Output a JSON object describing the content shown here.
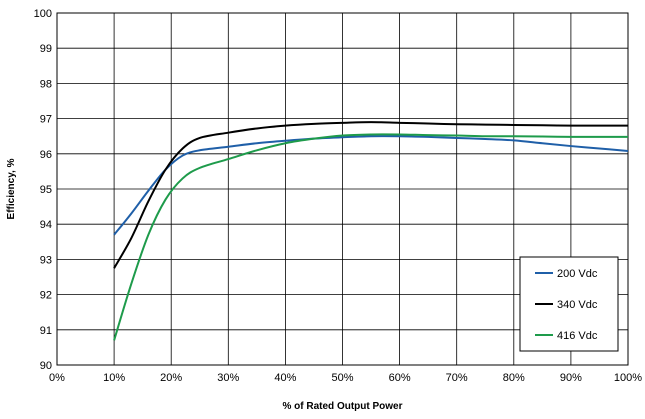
{
  "chart_data": {
    "type": "line",
    "xlabel": "% of Rated Output Power",
    "ylabel": "Efficiency, %",
    "xlim": [
      0,
      100
    ],
    "ylim": [
      90,
      100
    ],
    "x_ticks": [
      0,
      10,
      20,
      30,
      40,
      50,
      60,
      70,
      80,
      90,
      100
    ],
    "x_tick_labels": [
      "0%",
      "10%",
      "20%",
      "30%",
      "40%",
      "50%",
      "60%",
      "70%",
      "80%",
      "90%",
      "100%"
    ],
    "y_ticks": [
      90,
      91,
      92,
      93,
      94,
      95,
      96,
      97,
      98,
      99,
      100
    ],
    "y_tick_labels": [
      "90",
      "91",
      "92",
      "93",
      "94",
      "95",
      "96",
      "97",
      "98",
      "99",
      "100"
    ],
    "grid": true,
    "legend_position": "bottom-right",
    "series": [
      {
        "name": "200 Vdc",
        "color": "#1f5fa8",
        "x": [
          10,
          13,
          16,
          19,
          22,
          25,
          30,
          35,
          40,
          45,
          50,
          55,
          60,
          65,
          70,
          75,
          80,
          85,
          90,
          95,
          100
        ],
        "y": [
          93.7,
          94.3,
          94.95,
          95.55,
          95.95,
          96.1,
          96.2,
          96.3,
          96.37,
          96.43,
          96.47,
          96.5,
          96.5,
          96.48,
          96.45,
          96.42,
          96.38,
          96.3,
          96.22,
          96.15,
          96.08
        ]
      },
      {
        "name": "340 Vdc",
        "color": "#000000",
        "x": [
          10,
          13,
          16,
          19,
          22,
          25,
          30,
          35,
          40,
          45,
          50,
          55,
          60,
          65,
          70,
          75,
          80,
          85,
          90,
          95,
          100
        ],
        "y": [
          92.75,
          93.6,
          94.65,
          95.55,
          96.15,
          96.45,
          96.6,
          96.72,
          96.8,
          96.85,
          96.88,
          96.9,
          96.88,
          96.86,
          96.84,
          96.83,
          96.82,
          96.81,
          96.8,
          96.8,
          96.8
        ]
      },
      {
        "name": "416 Vdc",
        "color": "#1e9b4b",
        "x": [
          10,
          13,
          16,
          19,
          22,
          25,
          30,
          35,
          40,
          45,
          50,
          55,
          60,
          65,
          70,
          75,
          80,
          85,
          90,
          95,
          100
        ],
        "y": [
          90.7,
          92.3,
          93.7,
          94.7,
          95.3,
          95.6,
          95.85,
          96.1,
          96.3,
          96.43,
          96.52,
          96.55,
          96.55,
          96.53,
          96.52,
          96.5,
          96.5,
          96.49,
          96.48,
          96.48,
          96.48
        ]
      }
    ]
  }
}
